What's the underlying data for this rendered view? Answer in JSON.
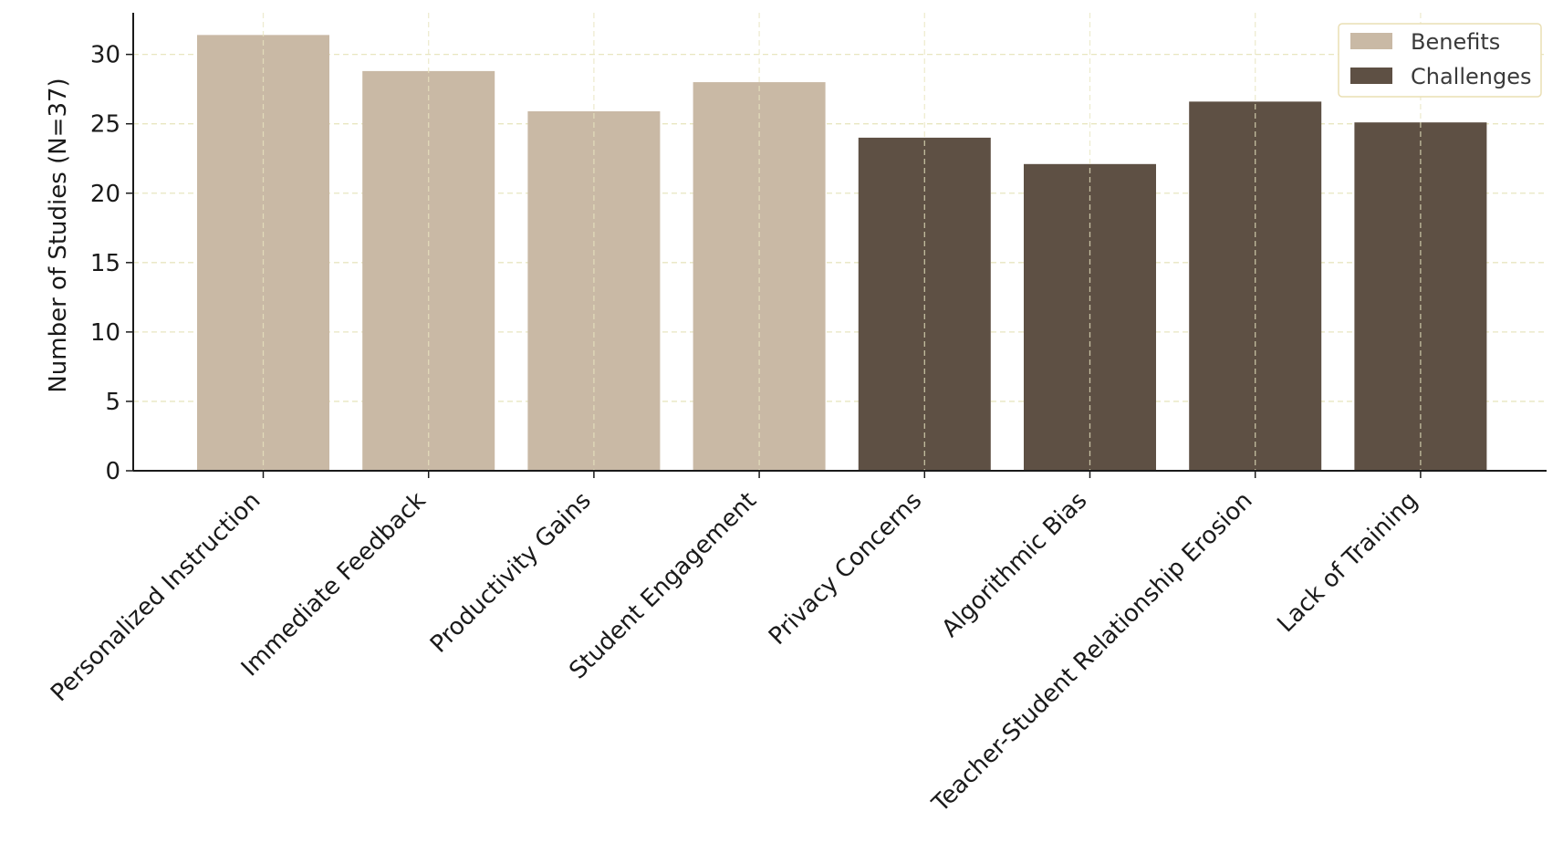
{
  "chart_data": {
    "type": "bar",
    "title": "",
    "xlabel": "",
    "ylabel": "Number of Studies (N=37)",
    "ylim": [
      0,
      33
    ],
    "yticks": [
      0,
      5,
      10,
      15,
      20,
      25,
      30
    ],
    "grid": true,
    "legend_position": "top-right",
    "categories": [
      "Personalized Instruction",
      "Immediate Feedback",
      "Productivity Gains",
      "Student Engagement",
      "Privacy Concerns",
      "Algorithmic Bias",
      "Teacher-Student Relationship Erosion",
      "Lack of Training"
    ],
    "series": [
      {
        "name": "Benefits",
        "color": "#c9b9a5",
        "values": [
          31.4,
          28.8,
          25.9,
          28.0,
          null,
          null,
          null,
          null
        ]
      },
      {
        "name": "Challenges",
        "color": "#5e5044",
        "values": [
          null,
          null,
          null,
          null,
          24.0,
          22.1,
          26.6,
          25.1
        ]
      }
    ]
  }
}
